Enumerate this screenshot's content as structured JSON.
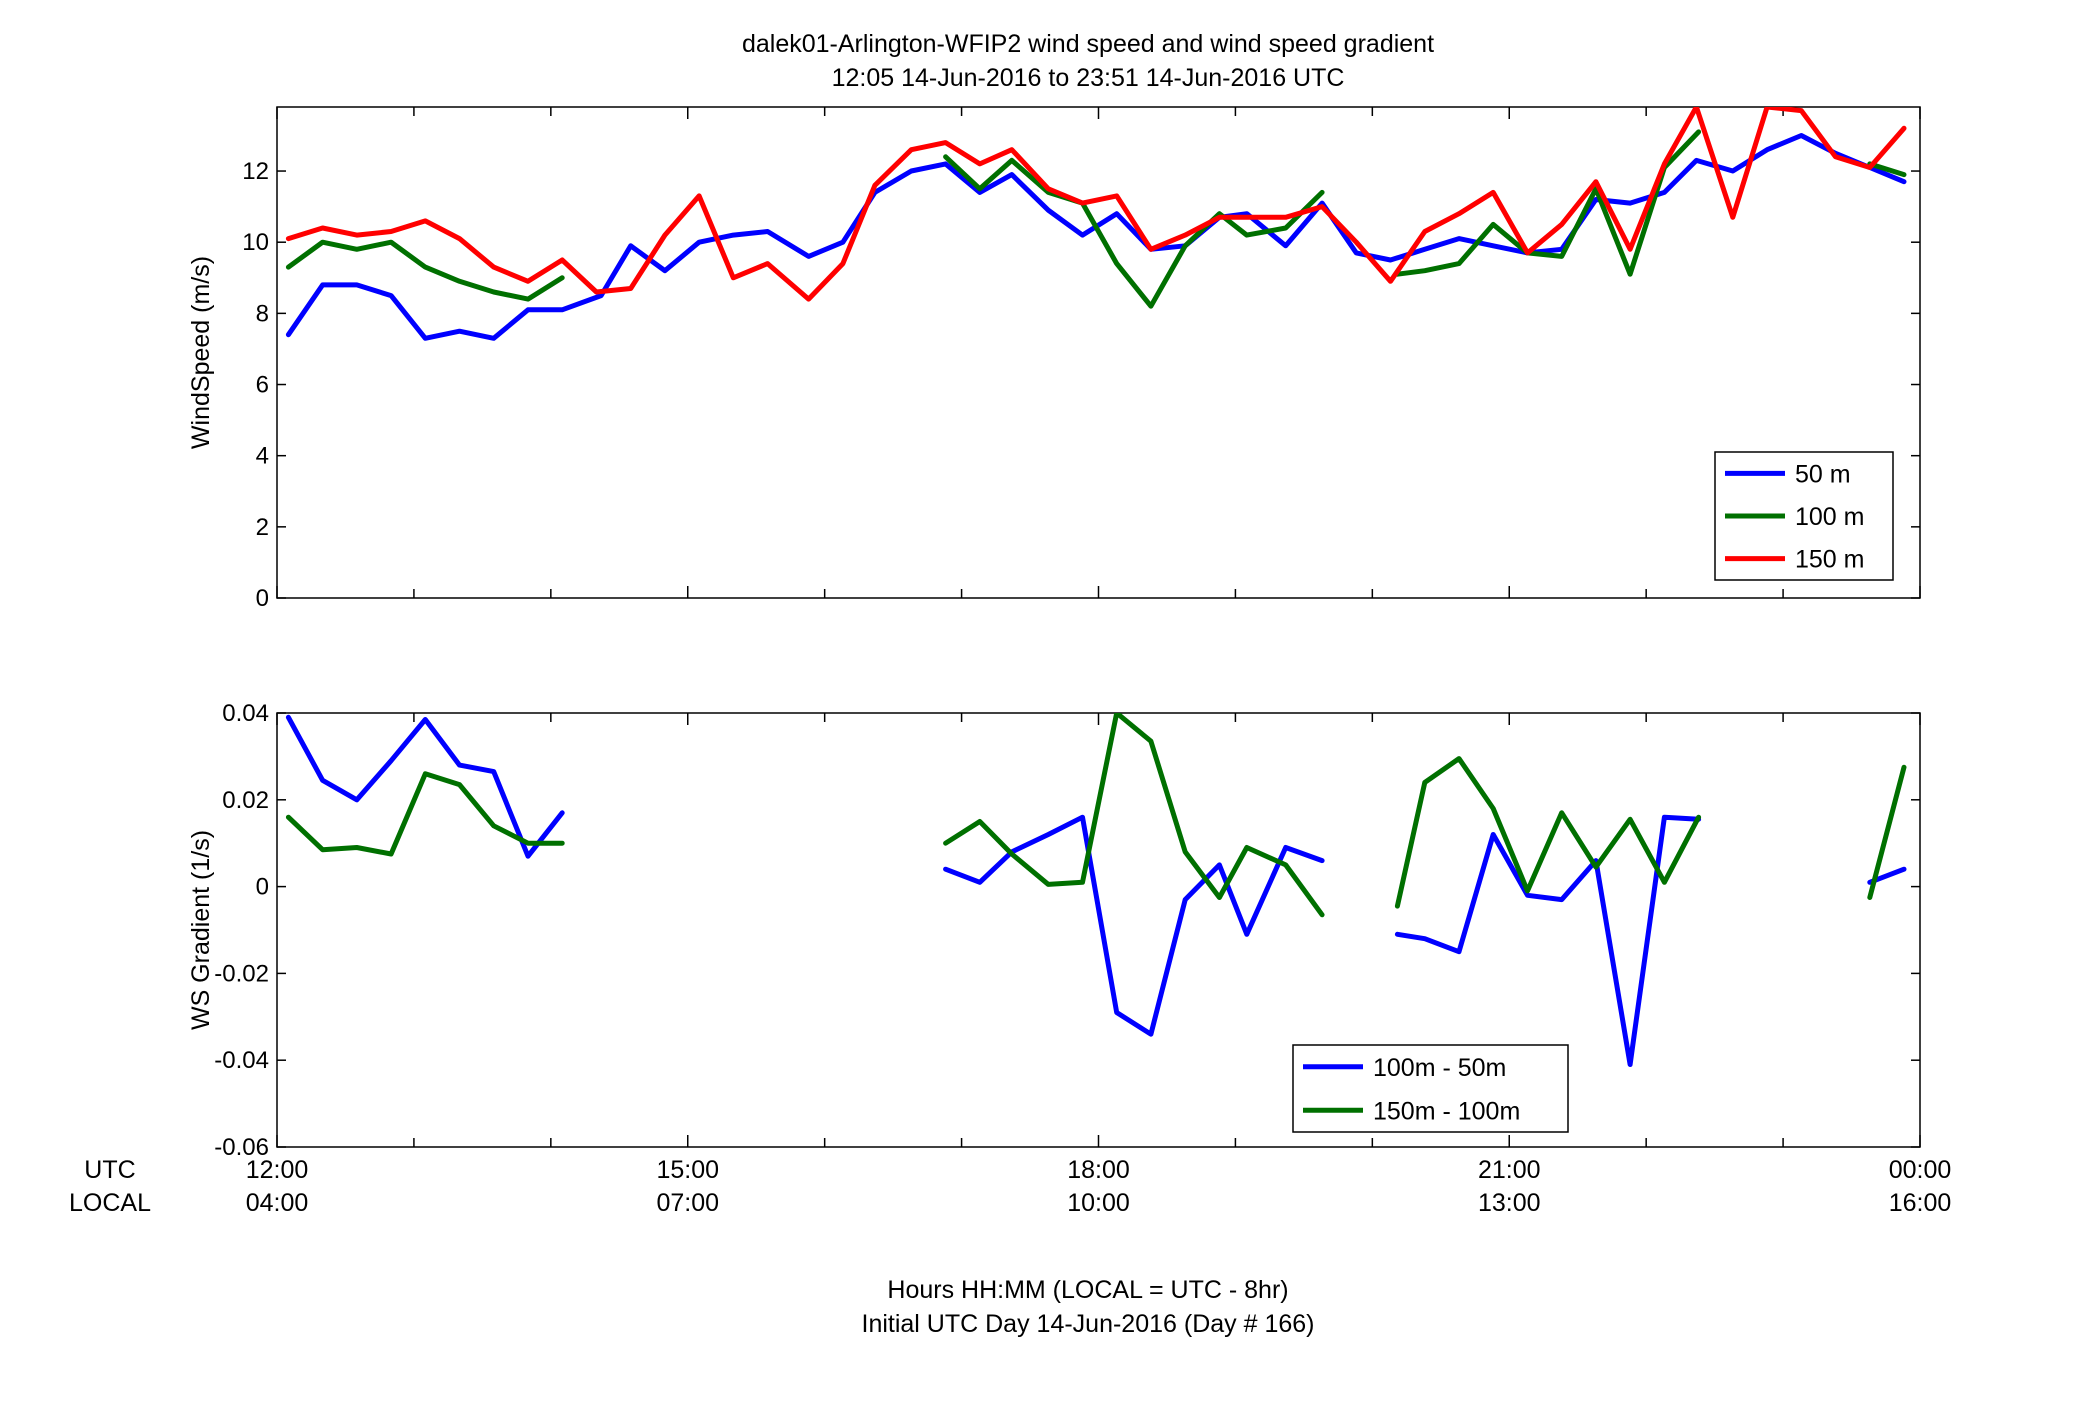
{
  "title": {
    "line1": "dalek01-Arlington-WFIP2  wind speed and wind speed gradient",
    "line2": "12:05 14-Jun-2016 to 23:51 14-Jun-2016  UTC"
  },
  "xaxis": {
    "row_label_utc": "UTC",
    "row_label_local": "LOCAL",
    "utc_ticks": [
      "12:00",
      "15:00",
      "18:00",
      "21:00",
      "00:00"
    ],
    "local_ticks": [
      "04:00",
      "07:00",
      "10:00",
      "13:00",
      "16:00"
    ],
    "xlabel_line1": "Hours HH:MM  (LOCAL = UTC - 8hr)",
    "xlabel_line2": "Initial UTC Day 14-Jun-2016 (Day # 166)"
  },
  "chart_data": [
    {
      "type": "line",
      "ylabel": "WindSpeed (m/s)",
      "xlim_hours": [
        12,
        24
      ],
      "ylim": [
        0,
        13.8
      ],
      "yticks": [
        0,
        2,
        4,
        6,
        8,
        10,
        12
      ],
      "ytick_labels": [
        "0",
        "2",
        "4",
        "6",
        "8",
        "10",
        "12"
      ],
      "grid": false,
      "legend_position": "bottom-right",
      "series": [
        {
          "name": "50 m",
          "color": "#0000ff",
          "points": [
            [
              12.083,
              7.4
            ],
            [
              12.333,
              8.8
            ],
            [
              12.583,
              8.8
            ],
            [
              12.833,
              8.5
            ],
            [
              13.083,
              7.3
            ],
            [
              13.333,
              7.5
            ],
            [
              13.583,
              7.3
            ],
            [
              13.833,
              8.1
            ],
            [
              14.083,
              8.1
            ],
            [
              14.367,
              8.5
            ],
            [
              14.583,
              9.9
            ],
            [
              14.833,
              9.2
            ],
            [
              15.083,
              10.0
            ],
            [
              15.333,
              10.2
            ],
            [
              15.583,
              10.3
            ],
            [
              15.883,
              9.6
            ],
            [
              16.133,
              10.0
            ],
            [
              16.367,
              11.4
            ],
            [
              16.633,
              12.0
            ],
            [
              16.883,
              12.2
            ],
            [
              17.133,
              11.4
            ],
            [
              17.367,
              11.9
            ],
            [
              17.633,
              10.9
            ],
            [
              17.883,
              10.2
            ],
            [
              18.133,
              10.8
            ],
            [
              18.383,
              9.8
            ],
            [
              18.633,
              9.9
            ],
            [
              18.883,
              10.7
            ],
            [
              19.083,
              10.8
            ],
            [
              19.367,
              9.9
            ],
            [
              19.633,
              11.1
            ],
            [
              19.883,
              9.7
            ],
            [
              20.133,
              9.5
            ],
            [
              20.383,
              9.8
            ],
            [
              20.633,
              10.1
            ],
            [
              20.883,
              9.9
            ],
            [
              21.133,
              9.7
            ],
            [
              21.383,
              9.8
            ],
            [
              21.633,
              11.2
            ],
            [
              21.883,
              11.1
            ],
            [
              22.133,
              11.4
            ],
            [
              22.367,
              12.3
            ],
            [
              22.633,
              12.0
            ],
            [
              22.883,
              12.6
            ],
            [
              23.133,
              13.0
            ],
            [
              23.383,
              12.5
            ],
            [
              23.633,
              12.1
            ],
            [
              23.883,
              11.7
            ]
          ]
        },
        {
          "name": "100 m",
          "color": "#007000",
          "segments": [
            [
              [
                12.083,
                9.3
              ],
              [
                12.333,
                10.0
              ],
              [
                12.583,
                9.8
              ],
              [
                12.833,
                10.0
              ],
              [
                13.083,
                9.3
              ],
              [
                13.333,
                8.9
              ],
              [
                13.583,
                8.6
              ],
              [
                13.833,
                8.4
              ],
              [
                14.083,
                9.0
              ]
            ],
            [
              [
                16.883,
                12.4
              ],
              [
                17.133,
                11.5
              ],
              [
                17.367,
                12.3
              ],
              [
                17.633,
                11.4
              ],
              [
                17.883,
                11.1
              ],
              [
                18.133,
                9.4
              ],
              [
                18.383,
                8.2
              ],
              [
                18.633,
                9.9
              ],
              [
                18.883,
                10.8
              ],
              [
                19.083,
                10.2
              ],
              [
                19.367,
                10.4
              ],
              [
                19.633,
                11.4
              ]
            ],
            [
              [
                20.183,
                9.1
              ],
              [
                20.383,
                9.2
              ],
              [
                20.633,
                9.4
              ],
              [
                20.883,
                10.5
              ],
              [
                21.133,
                9.7
              ],
              [
                21.383,
                9.6
              ],
              [
                21.633,
                11.5
              ],
              [
                21.883,
                9.1
              ],
              [
                22.133,
                12.1
              ],
              [
                22.383,
                13.1
              ]
            ],
            [
              [
                23.633,
                12.2
              ],
              [
                23.883,
                11.9
              ]
            ]
          ]
        },
        {
          "name": "150 m",
          "color": "#ff0000",
          "points": [
            [
              12.083,
              10.1
            ],
            [
              12.333,
              10.4
            ],
            [
              12.583,
              10.2
            ],
            [
              12.833,
              10.3
            ],
            [
              13.083,
              10.6
            ],
            [
              13.333,
              10.1
            ],
            [
              13.583,
              9.3
            ],
            [
              13.833,
              8.9
            ],
            [
              14.083,
              9.5
            ],
            [
              14.333,
              8.6
            ],
            [
              14.583,
              8.7
            ],
            [
              14.833,
              10.2
            ],
            [
              15.083,
              11.3
            ],
            [
              15.333,
              9.0
            ],
            [
              15.583,
              9.4
            ],
            [
              15.883,
              8.4
            ],
            [
              16.133,
              9.4
            ],
            [
              16.367,
              11.6
            ],
            [
              16.633,
              12.6
            ],
            [
              16.883,
              12.8
            ],
            [
              17.133,
              12.2
            ],
            [
              17.367,
              12.6
            ],
            [
              17.633,
              11.5
            ],
            [
              17.883,
              11.1
            ],
            [
              18.133,
              11.3
            ],
            [
              18.383,
              9.8
            ],
            [
              18.633,
              10.2
            ],
            [
              18.883,
              10.7
            ],
            [
              19.083,
              10.7
            ],
            [
              19.367,
              10.7
            ],
            [
              19.633,
              11.0
            ],
            [
              19.883,
              10.0
            ],
            [
              20.133,
              8.9
            ],
            [
              20.383,
              10.3
            ],
            [
              20.633,
              10.8
            ],
            [
              20.883,
              11.4
            ],
            [
              21.133,
              9.7
            ],
            [
              21.383,
              10.5
            ],
            [
              21.633,
              11.7
            ],
            [
              21.883,
              9.8
            ],
            [
              22.133,
              12.2
            ],
            [
              22.367,
              13.8
            ],
            [
              22.633,
              10.7
            ],
            [
              22.883,
              13.8
            ],
            [
              23.133,
              13.7
            ],
            [
              23.383,
              12.4
            ],
            [
              23.633,
              12.1
            ],
            [
              23.883,
              13.2
            ]
          ]
        }
      ]
    },
    {
      "type": "line",
      "ylabel": "WS Gradient (1/s)",
      "xlim_hours": [
        12,
        24
      ],
      "ylim": [
        -0.06,
        0.04
      ],
      "yticks": [
        -0.06,
        -0.04,
        -0.02,
        0,
        0.02,
        0.04
      ],
      "ytick_labels": [
        "-0.06",
        "-0.04",
        "-0.02",
        "0",
        "0.02",
        "0.04"
      ],
      "grid": false,
      "legend_position": "bottom-center-right",
      "series": [
        {
          "name": "100m - 50m",
          "color": "#0000ff",
          "segments": [
            [
              [
                12.083,
                0.039
              ],
              [
                12.333,
                0.0245
              ],
              [
                12.583,
                0.02
              ],
              [
                12.833,
                0.029
              ],
              [
                13.083,
                0.0385
              ],
              [
                13.333,
                0.028
              ],
              [
                13.583,
                0.0265
              ],
              [
                13.833,
                0.007
              ],
              [
                14.083,
                0.017
              ]
            ],
            [
              [
                16.883,
                0.004
              ],
              [
                17.133,
                0.001
              ],
              [
                17.367,
                0.008
              ],
              [
                17.633,
                0.012
              ],
              [
                17.883,
                0.016
              ],
              [
                18.133,
                -0.029
              ],
              [
                18.383,
                -0.034
              ],
              [
                18.633,
                -0.003
              ],
              [
                18.883,
                0.005
              ],
              [
                19.083,
                -0.011
              ],
              [
                19.367,
                0.009
              ],
              [
                19.633,
                0.006
              ]
            ],
            [
              [
                20.183,
                -0.011
              ],
              [
                20.383,
                -0.012
              ],
              [
                20.633,
                -0.015
              ],
              [
                20.883,
                0.012
              ],
              [
                21.133,
                -0.002
              ],
              [
                21.383,
                -0.003
              ],
              [
                21.633,
                0.006
              ],
              [
                21.883,
                -0.041
              ],
              [
                22.133,
                0.016
              ],
              [
                22.383,
                0.0155
              ]
            ],
            [
              [
                23.633,
                0.001
              ],
              [
                23.883,
                0.004
              ]
            ]
          ]
        },
        {
          "name": "150m - 100m",
          "color": "#007000",
          "segments": [
            [
              [
                12.083,
                0.016
              ],
              [
                12.333,
                0.0085
              ],
              [
                12.583,
                0.009
              ],
              [
                12.833,
                0.0075
              ],
              [
                13.083,
                0.026
              ],
              [
                13.333,
                0.0235
              ],
              [
                13.583,
                0.014
              ],
              [
                13.833,
                0.01
              ],
              [
                14.083,
                0.01
              ]
            ],
            [
              [
                16.883,
                0.01
              ],
              [
                17.133,
                0.015
              ],
              [
                17.367,
                0.0075
              ],
              [
                17.633,
                0.0005
              ],
              [
                17.883,
                0.001
              ],
              [
                18.133,
                0.04
              ],
              [
                18.383,
                0.0335
              ],
              [
                18.633,
                0.008
              ],
              [
                18.883,
                -0.0025
              ],
              [
                19.083,
                0.009
              ],
              [
                19.367,
                0.005
              ],
              [
                19.633,
                -0.0065
              ]
            ],
            [
              [
                20.183,
                -0.0045
              ],
              [
                20.383,
                0.024
              ],
              [
                20.633,
                0.0295
              ],
              [
                20.883,
                0.018
              ],
              [
                21.133,
                -0.001
              ],
              [
                21.383,
                0.017
              ],
              [
                21.633,
                0.0045
              ],
              [
                21.883,
                0.0155
              ],
              [
                22.133,
                0.001
              ],
              [
                22.383,
                0.016
              ]
            ],
            [
              [
                23.633,
                -0.0025
              ],
              [
                23.883,
                0.0275
              ]
            ]
          ]
        }
      ]
    }
  ]
}
